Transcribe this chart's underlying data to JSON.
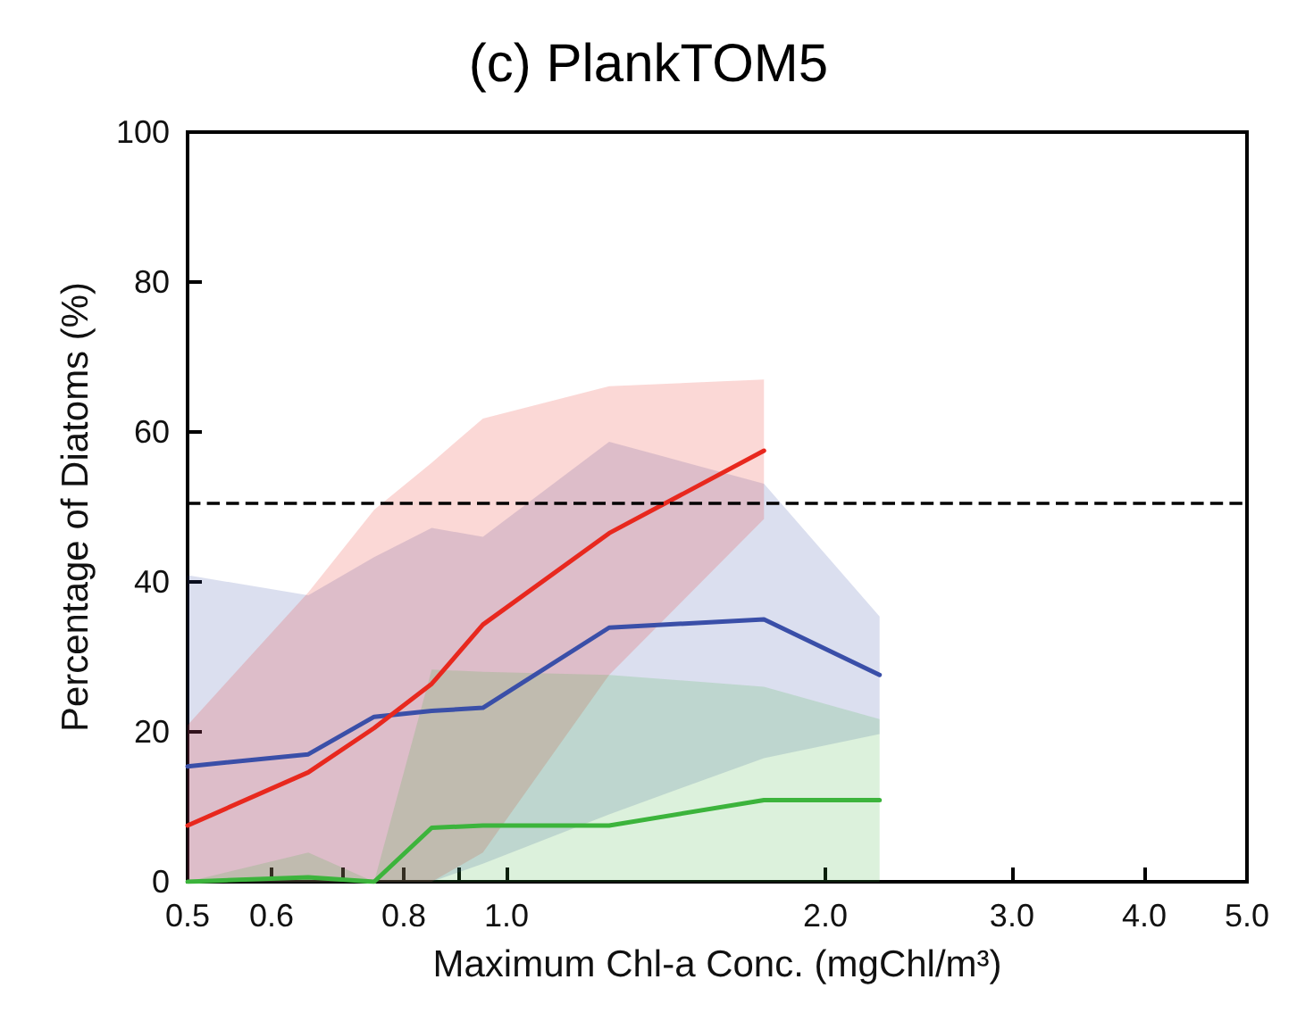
{
  "chart_data": {
    "type": "line",
    "title": "(c) PlankTOM5",
    "xlabel": "Maximum Chl-a Conc. (mgChl/m³)",
    "ylabel": "Percentage of Diatoms (%)",
    "log": "x",
    "xlim": [
      0.5,
      5.0
    ],
    "xticks": [
      {
        "value": 0.5,
        "label": "0.5"
      },
      {
        "value": 0.6,
        "label": "0.6"
      },
      {
        "value": 0.7,
        "label": null
      },
      {
        "value": 0.8,
        "label": "0.8"
      },
      {
        "value": 0.9,
        "label": null
      },
      {
        "value": 1.0,
        "label": "1.0"
      },
      {
        "value": 2.0,
        "label": "2.0"
      },
      {
        "value": 3.0,
        "label": "3.0"
      },
      {
        "value": 4.0,
        "label": "4.0"
      },
      {
        "value": 5.0,
        "label": "5.0"
      }
    ],
    "ylim": [
      0,
      100
    ],
    "yticks": [
      0,
      20,
      40,
      60,
      80,
      100
    ],
    "grid": false,
    "marker": "none",
    "line_style": "solid",
    "ref_lines": [
      {
        "axis": "y",
        "value": 50.5,
        "color": "#000000",
        "line_style": "dashed"
      }
    ],
    "series": [
      {
        "color": "#3a4fa8",
        "x": [
          0.5,
          0.65,
          0.75,
          0.85,
          0.95,
          1.25,
          1.75,
          2.25
        ],
        "values": [
          15.4,
          17,
          22,
          22.8,
          23.2,
          33.9,
          35,
          27.6
        ],
        "lower": [
          0,
          0,
          0,
          0,
          2.4,
          9,
          16.5,
          19.7
        ],
        "upper": [
          40.9,
          38.2,
          43.3,
          47.2,
          46,
          58.7,
          53.1,
          35.4
        ]
      },
      {
        "color": "#e8281e",
        "x": [
          0.5,
          0.65,
          0.75,
          0.85,
          0.95,
          1.25,
          1.75
        ],
        "values": [
          7.5,
          14.6,
          20.5,
          26.4,
          34.3,
          46.5,
          57.5
        ],
        "lower": [
          0,
          0,
          0,
          0,
          3.9,
          27.6,
          48.4
        ],
        "upper": [
          20.9,
          38.6,
          49.6,
          55.9,
          61.8,
          66.1,
          67
        ]
      },
      {
        "color": "#3cb43c",
        "x": [
          0.5,
          0.65,
          0.75,
          0.85,
          0.95,
          1.25,
          1.75,
          2.25
        ],
        "values": [
          0,
          0.6,
          0,
          7.2,
          7.5,
          7.5,
          10.9,
          10.9
        ],
        "lower": [
          0,
          0,
          0,
          0,
          0,
          0,
          0,
          0
        ],
        "upper": [
          0,
          3.9,
          0,
          28.3,
          28,
          27.6,
          26,
          21.7
        ]
      }
    ]
  }
}
